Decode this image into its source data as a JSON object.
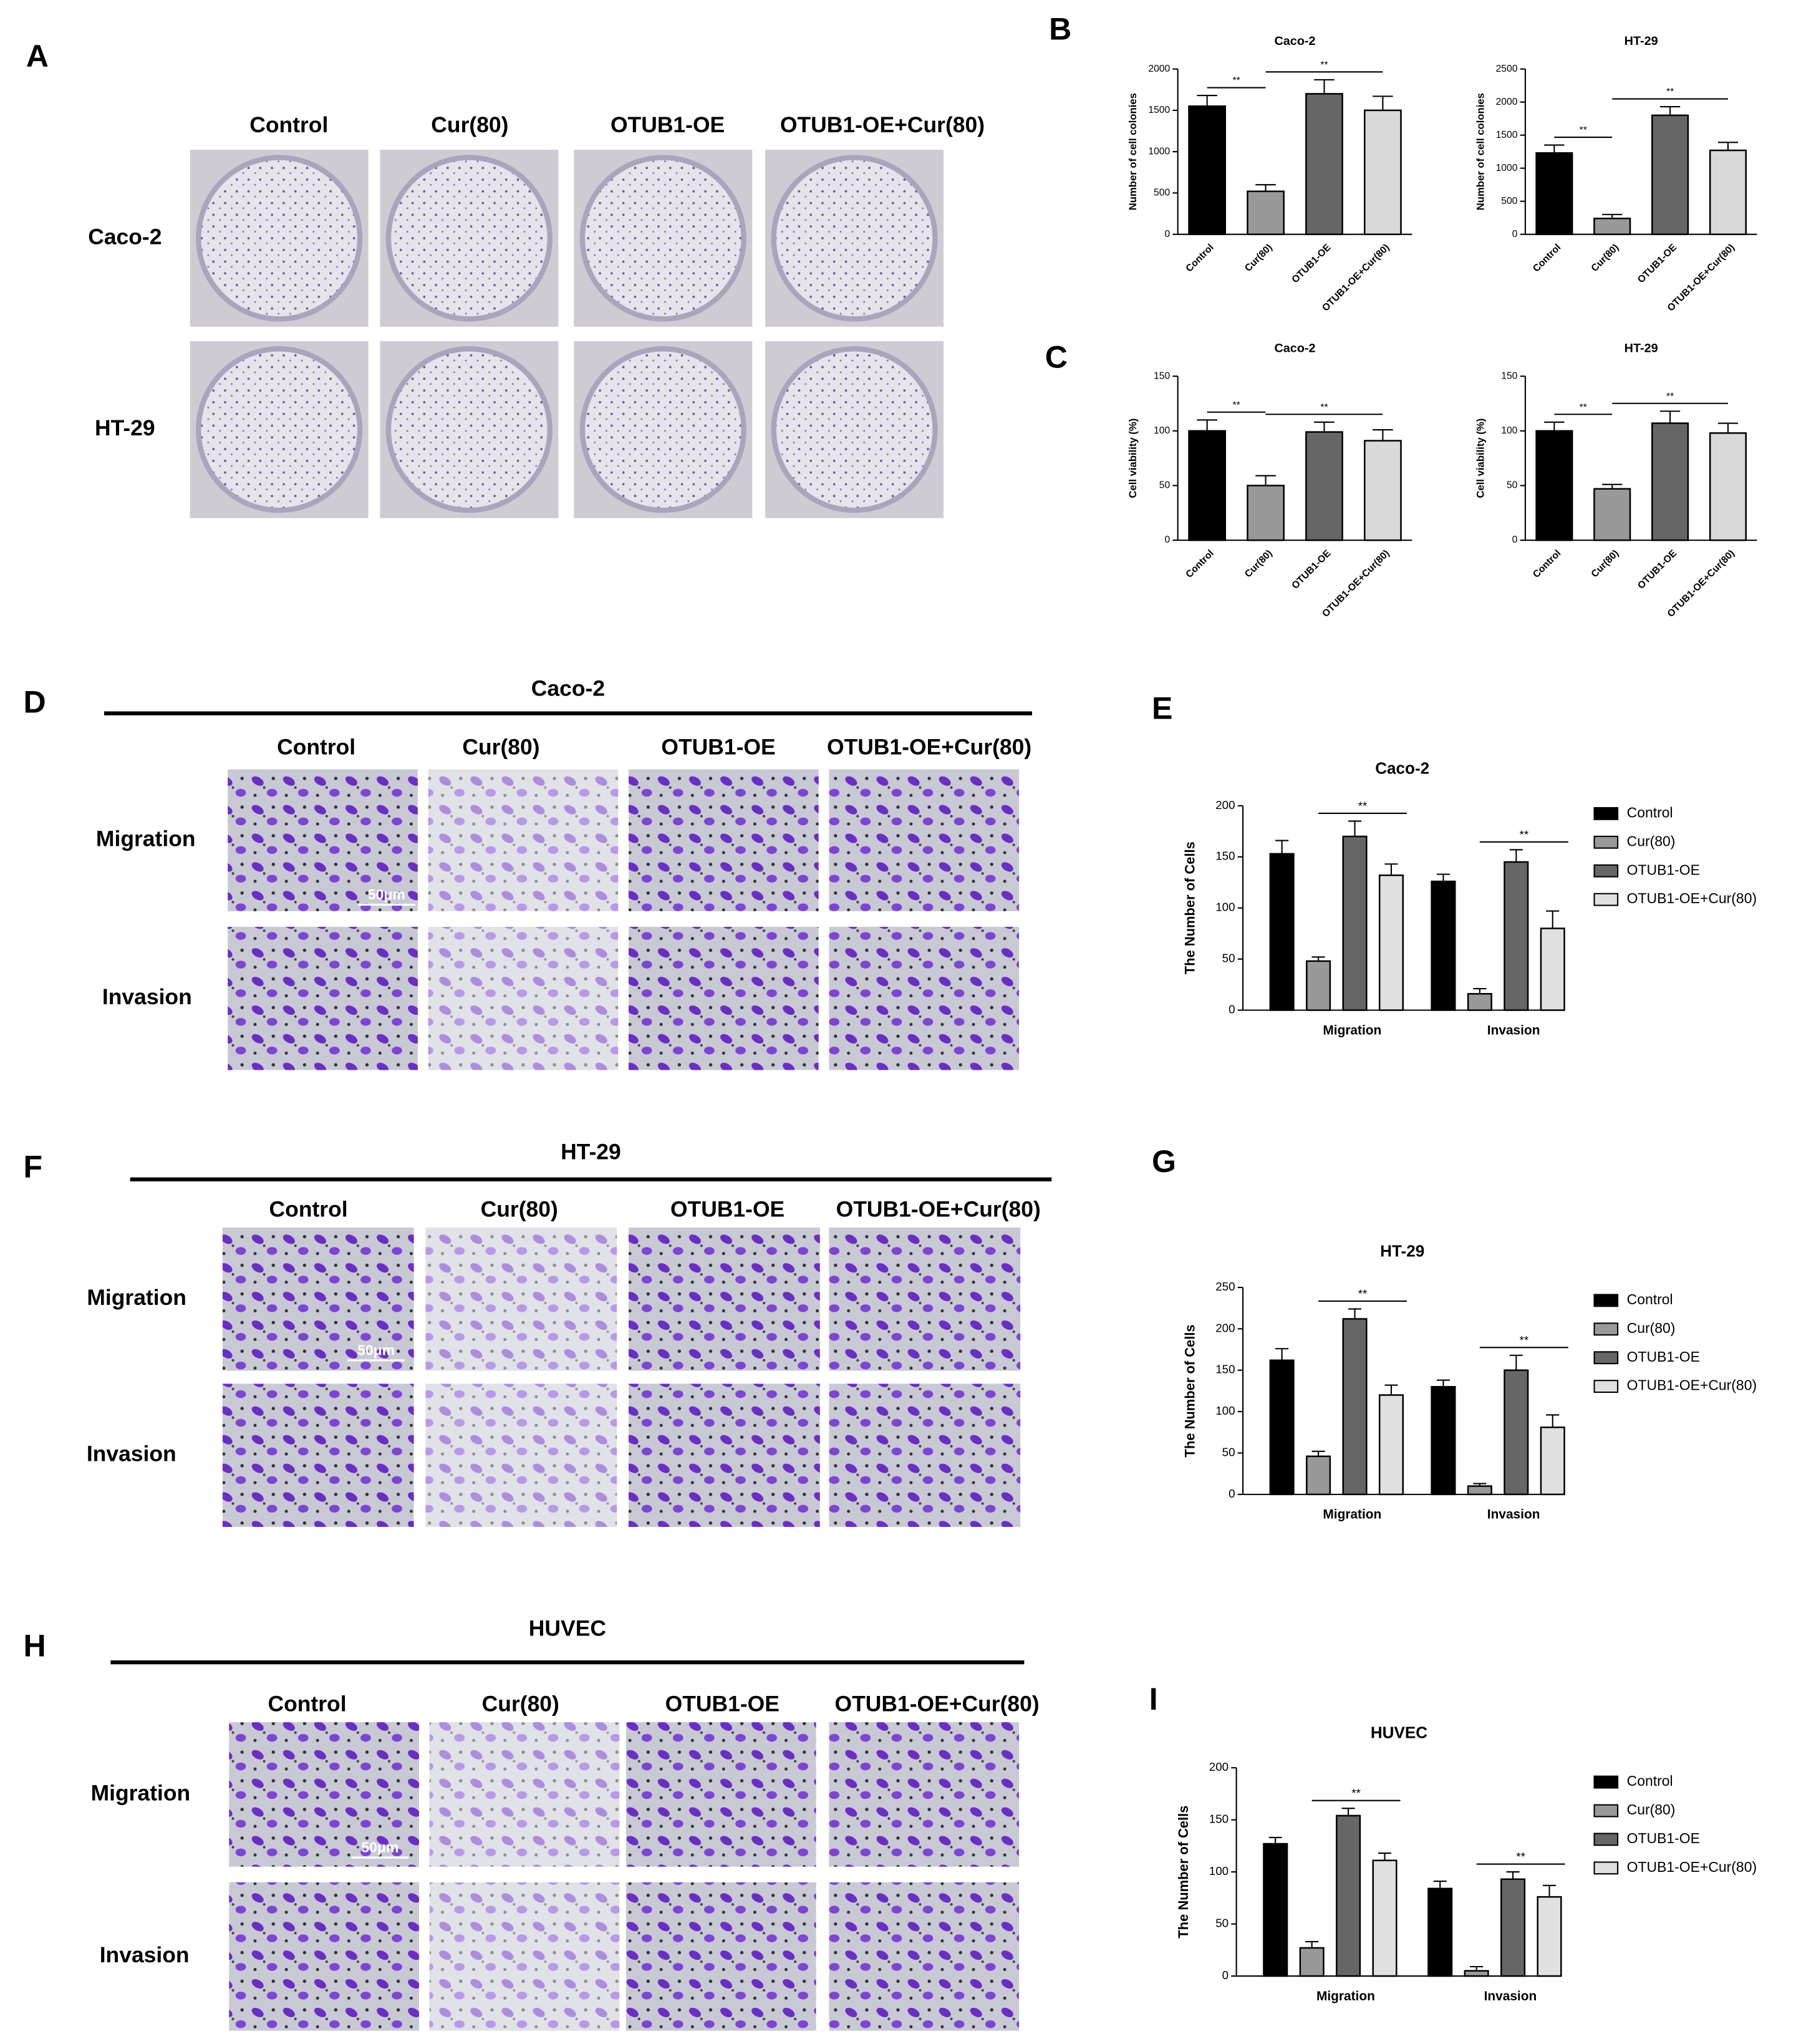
{
  "letters": [
    "A",
    "B",
    "C",
    "D",
    "E",
    "F",
    "G",
    "H",
    "I"
  ],
  "colony_images": {
    "columns": [
      "Control",
      "Cur(80)",
      "OTUB1-OE",
      "OTUB1-OE+Cur(80)"
    ],
    "rows": [
      "Caco-2",
      "HT-29"
    ]
  },
  "transwell_images": [
    {
      "title": "Caco-2",
      "columns": [
        "Control",
        "Cur(80)",
        "OTUB1-OE",
        "OTUB1-OE+Cur(80)"
      ],
      "rows": [
        "Migration",
        "Invasion"
      ],
      "scale_bar": "50μm"
    },
    {
      "title": "HT-29",
      "columns": [
        "Control",
        "Cur(80)",
        "OTUB1-OE",
        "OTUB1-OE+Cur(80)"
      ],
      "rows": [
        "Migration",
        "Invasion"
      ],
      "scale_bar": "50μm"
    },
    {
      "title": "HUVEC",
      "columns": [
        "Control",
        "Cur(80)",
        "OTUB1-OE",
        "OTUB1-OE+Cur(80)"
      ],
      "rows": [
        "Migration",
        "Invasion"
      ],
      "scale_bar": "50μm"
    }
  ],
  "chart_data": [
    {
      "type": "bar",
      "title": "Caco-2",
      "y_label": "Number of cell colonies",
      "categories": [
        "Control",
        "Cur(80)",
        "OTUB1-OE",
        "OTUB1-OE+Cur(80)"
      ],
      "values": [
        1550,
        520,
        1700,
        1500
      ],
      "errors": [
        130,
        80,
        170,
        170
      ],
      "colors": [
        "#000000",
        "#999999",
        "#666666",
        "#d9d9d9"
      ],
      "ylim": [
        0,
        2000
      ],
      "yticks": [
        0,
        500,
        1000,
        1500,
        2000
      ],
      "annotations": [
        "**",
        "**"
      ]
    },
    {
      "type": "bar",
      "title": "HT-29",
      "y_label": "Number of cell colonies",
      "categories": [
        "Control",
        "Cur(80)",
        "OTUB1-OE",
        "OTUB1-OE+Cur(80)"
      ],
      "values": [
        1230,
        240,
        1800,
        1270
      ],
      "errors": [
        120,
        60,
        130,
        120
      ],
      "colors": [
        "#000000",
        "#999999",
        "#666666",
        "#d9d9d9"
      ],
      "ylim": [
        0,
        2500
      ],
      "yticks": [
        0,
        500,
        1000,
        1500,
        2000,
        2500
      ],
      "annotations": [
        "**",
        "**"
      ]
    },
    {
      "type": "bar",
      "title": "Caco-2",
      "y_label": "Cell viability (%)",
      "categories": [
        "Control",
        "Cur(80)",
        "OTUB1-OE",
        "OTUB1-OE+Cur(80)"
      ],
      "values": [
        100,
        50,
        99,
        91
      ],
      "errors": [
        10,
        9,
        9,
        10
      ],
      "colors": [
        "#000000",
        "#999999",
        "#666666",
        "#d9d9d9"
      ],
      "ylim": [
        0,
        150
      ],
      "yticks": [
        0,
        50,
        100,
        150
      ],
      "annotations": [
        "**",
        "**"
      ]
    },
    {
      "type": "bar",
      "title": "HT-29",
      "y_label": "Cell viability (%)",
      "categories": [
        "Control",
        "Cur(80)",
        "OTUB1-OE",
        "OTUB1-OE+Cur(80)"
      ],
      "values": [
        100,
        47,
        107,
        98
      ],
      "errors": [
        8,
        4,
        11,
        9
      ],
      "colors": [
        "#000000",
        "#999999",
        "#666666",
        "#d9d9d9"
      ],
      "ylim": [
        0,
        150
      ],
      "yticks": [
        0,
        50,
        100,
        150
      ],
      "annotations": [
        "**",
        "**"
      ]
    },
    {
      "type": "bar",
      "title": "Caco-2",
      "y_label": "The Number of Cells",
      "categories": [
        "Migration",
        "Invasion"
      ],
      "series": [
        {
          "name": "Control",
          "color": "#000000",
          "values": [
            153,
            126
          ],
          "errors": [
            13,
            7
          ]
        },
        {
          "name": "Cur(80)",
          "color": "#999999",
          "values": [
            48,
            16
          ],
          "errors": [
            4,
            5
          ]
        },
        {
          "name": "OTUB1-OE",
          "color": "#666666",
          "values": [
            170,
            145
          ],
          "errors": [
            15,
            12
          ]
        },
        {
          "name": "OTUB1-OE+Cur(80)",
          "color": "#e0e0e0",
          "values": [
            132,
            80
          ],
          "errors": [
            11,
            17
          ]
        }
      ],
      "ylim": [
        0,
        200
      ],
      "yticks": [
        0,
        50,
        100,
        150,
        200
      ],
      "annotations": [
        "**",
        "**"
      ],
      "legend": "right"
    },
    {
      "type": "bar",
      "title": "HT-29",
      "y_label": "The Number of Cells",
      "categories": [
        "Migration",
        "Invasion"
      ],
      "series": [
        {
          "name": "Control",
          "color": "#000000",
          "values": [
            162,
            130
          ],
          "errors": [
            14,
            8
          ]
        },
        {
          "name": "Cur(80)",
          "color": "#999999",
          "values": [
            46,
            10
          ],
          "errors": [
            6,
            3
          ]
        },
        {
          "name": "OTUB1-OE",
          "color": "#666666",
          "values": [
            212,
            150
          ],
          "errors": [
            12,
            18
          ]
        },
        {
          "name": "OTUB1-OE+Cur(80)",
          "color": "#e0e0e0",
          "values": [
            120,
            81
          ],
          "errors": [
            12,
            15
          ]
        }
      ],
      "ylim": [
        0,
        250
      ],
      "yticks": [
        0,
        50,
        100,
        150,
        200,
        250
      ],
      "annotations": [
        "**",
        "**"
      ],
      "legend": "right"
    },
    {
      "type": "bar",
      "title": "HUVEC",
      "y_label": "The Number of Cells",
      "categories": [
        "Migration",
        "Invasion"
      ],
      "series": [
        {
          "name": "Control",
          "color": "#000000",
          "values": [
            127,
            84
          ],
          "errors": [
            6,
            7
          ]
        },
        {
          "name": "Cur(80)",
          "color": "#999999",
          "values": [
            27,
            5
          ],
          "errors": [
            6,
            4
          ]
        },
        {
          "name": "OTUB1-OE",
          "color": "#666666",
          "values": [
            154,
            93
          ],
          "errors": [
            7,
            7
          ]
        },
        {
          "name": "OTUB1-OE+Cur(80)",
          "color": "#e0e0e0",
          "values": [
            111,
            76
          ],
          "errors": [
            7,
            11
          ]
        }
      ],
      "ylim": [
        0,
        200
      ],
      "yticks": [
        0,
        50,
        100,
        150,
        200
      ],
      "annotations": [
        "**",
        "**"
      ],
      "legend": "right"
    }
  ]
}
